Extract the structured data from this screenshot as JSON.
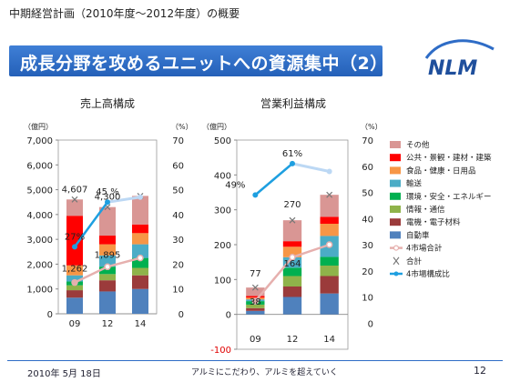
{
  "slide": {
    "subtitle": "中期経営計画（2010年度～2012年度）の概要",
    "title": "成長分野を攻めるユニットへの資源集中（2）",
    "logo_text": "NLM",
    "footer_date": "2010年 5月 18日",
    "footer_slogan": "アルミにこだわり、アルミを超えていく",
    "page_number": "12"
  },
  "colors": {
    "banner": "#2e6cc6",
    "auto": "#4f81bd",
    "electric": "#9b3b3b",
    "info": "#8fb34a",
    "env": "#00b050",
    "transport": "#4bacc6",
    "food": "#f79646",
    "public": "#ff0000",
    "other": "#d99694",
    "total4": "#e6b0ae",
    "ratio": "#1e9fe0"
  },
  "legend": {
    "items": [
      {
        "label": "その他",
        "kind": "box",
        "color": "#d99694"
      },
      {
        "label": "公共・景観・建材・建築",
        "kind": "box",
        "color": "#ff0000"
      },
      {
        "label": "食品・健康・日用品",
        "kind": "box",
        "color": "#f79646"
      },
      {
        "label": "輸送",
        "kind": "box",
        "color": "#4bacc6"
      },
      {
        "label": "環境・安全・エネルギー",
        "kind": "box",
        "color": "#00b050"
      },
      {
        "label": "情報・通信",
        "kind": "box",
        "color": "#8fb34a"
      },
      {
        "label": "電機・電子材料",
        "kind": "box",
        "color": "#9b3b3b"
      },
      {
        "label": "自動車",
        "kind": "box",
        "color": "#4f81bd"
      },
      {
        "label": "4市場合計",
        "kind": "line",
        "color": "#e6b0ae"
      },
      {
        "label": "合計",
        "kind": "cross",
        "color": "#777777"
      },
      {
        "label": "4市場構成比",
        "kind": "line-marker",
        "color": "#1e9fe0"
      }
    ]
  },
  "chart_data": [
    {
      "type": "bar",
      "title": "売上高構成",
      "ylabel": "（億円）",
      "y2label": "（%）",
      "categories": [
        "09",
        "12",
        "14"
      ],
      "ylim": [
        0,
        7000
      ],
      "yticks": [
        "0",
        "1,000",
        "2,000",
        "3,000",
        "4,000",
        "5,000",
        "6,000",
        "7,000"
      ],
      "y2lim": [
        0,
        70
      ],
      "y2ticks": [
        "0",
        "10",
        "20",
        "30",
        "40",
        "50",
        "60",
        "70"
      ],
      "y2_zero_at": 0,
      "series": [
        {
          "name": "自動車",
          "color": "#4f81bd",
          "values": [
            650,
            900,
            1000
          ]
        },
        {
          "name": "電機・電子材料",
          "color": "#9b3b3b",
          "values": [
            300,
            450,
            550
          ]
        },
        {
          "name": "情報・通信",
          "color": "#8fb34a",
          "values": [
            200,
            250,
            300
          ]
        },
        {
          "name": "環境・安全・エネルギー",
          "color": "#00b050",
          "values": [
            150,
            300,
            400
          ]
        },
        {
          "name": "輸送",
          "color": "#4bacc6",
          "values": [
            250,
            450,
            550
          ]
        },
        {
          "name": "食品・健康・日用品",
          "color": "#f79646",
          "values": [
            400,
            450,
            450
          ]
        },
        {
          "name": "公共・景観・建材・建築",
          "color": "#ff0000",
          "values": [
            2000,
            350,
            350
          ]
        },
        {
          "name": "その他",
          "color": "#d99694",
          "values": [
            657,
            1150,
            1150
          ]
        }
      ],
      "totals": {
        "name": "合計",
        "values": [
          4607,
          4300,
          4750
        ]
      },
      "total4": {
        "name": "4市場合計",
        "values": [
          1262,
          1895,
          2250
        ]
      },
      "ratio": {
        "name": "4市場構成比",
        "values": [
          27,
          45,
          47
        ]
      },
      "labels": [
        {
          "text": "4,607",
          "x": 0,
          "y": 4607,
          "dy": -8
        },
        {
          "text": "4,300",
          "x": 1,
          "y": 4300,
          "dy": -8
        },
        {
          "text": "45 %",
          "x": 1,
          "y": 5100,
          "dy": -8
        },
        {
          "text": "27%",
          "x": 0,
          "y": 3450,
          "dy": 0
        },
        {
          "text": "1,895",
          "x": 1,
          "y": 1895,
          "dy": -10
        },
        {
          "text": "1,262",
          "x": 0,
          "y": 1262,
          "dy": -12
        }
      ]
    },
    {
      "type": "bar",
      "title": "営業利益構成",
      "ylabel": "（億円）",
      "y2label": "（%）",
      "categories": [
        "09",
        "12",
        "14"
      ],
      "ylim": [
        -100,
        500
      ],
      "yticks": [
        "-100",
        "0",
        "100",
        "200",
        "300",
        "400",
        "500"
      ],
      "y2lim": [
        -10,
        70
      ],
      "y2ticks": [
        "0",
        "10",
        "20",
        "30",
        "40",
        "50",
        "60",
        "70"
      ],
      "y2_zero_at": 0,
      "series": [
        {
          "name": "自動車",
          "color": "#4f81bd",
          "values": [
            10,
            50,
            60
          ]
        },
        {
          "name": "電機・電子材料",
          "color": "#9b3b3b",
          "values": [
            8,
            30,
            50
          ]
        },
        {
          "name": "情報・通信",
          "color": "#8fb34a",
          "values": [
            10,
            30,
            30
          ]
        },
        {
          "name": "環境・安全・エネルギー",
          "color": "#00b050",
          "values": [
            10,
            24,
            25
          ]
        },
        {
          "name": "輸送",
          "color": "#4bacc6",
          "values": [
            5,
            30,
            60
          ]
        },
        {
          "name": "食品・健康・日用品",
          "color": "#f79646",
          "values": [
            5,
            30,
            35
          ]
        },
        {
          "name": "公共・景観・建材・建築",
          "color": "#ff0000",
          "values": [
            5,
            16,
            20
          ]
        },
        {
          "name": "その他",
          "color": "#d99694",
          "values": [
            24,
            60,
            63
          ]
        }
      ],
      "totals": {
        "name": "合計",
        "values": [
          77,
          270,
          343
        ]
      },
      "total4": {
        "name": "4市場合計",
        "values": [
          38,
          164,
          200
        ]
      },
      "ratio": {
        "name": "4市場構成比",
        "values": [
          49,
          61,
          58
        ]
      },
      "labels": [
        {
          "text": "49%",
          "x": 0,
          "y": 422,
          "dy": 0,
          "dx": -22
        },
        {
          "text": "61%",
          "x": 1,
          "y": 495,
          "dy": -4
        },
        {
          "text": "270",
          "x": 1,
          "y": 270,
          "dy": -14
        },
        {
          "text": "164",
          "x": 1,
          "y": 164,
          "dy": 10
        },
        {
          "text": "77",
          "x": 0,
          "y": 77,
          "dy": -12
        },
        {
          "text": "38",
          "x": 0,
          "y": 38,
          "dy": 4
        }
      ]
    }
  ]
}
